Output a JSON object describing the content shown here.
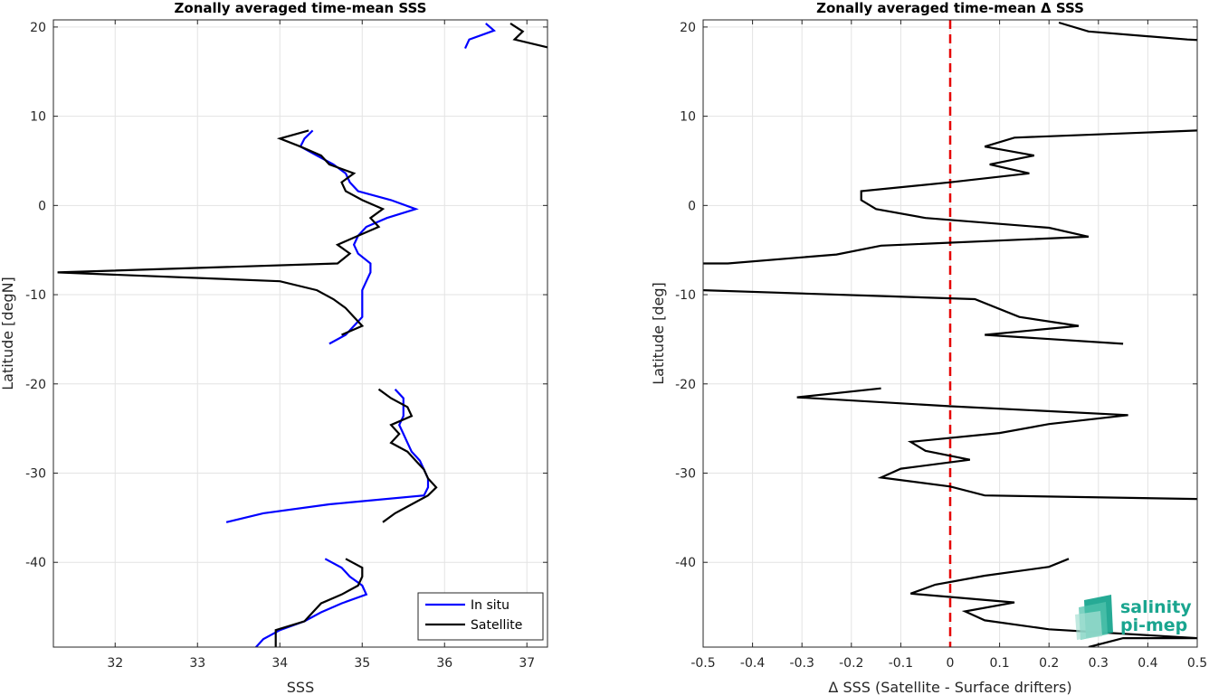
{
  "colors": {
    "in_situ": "#0000ff",
    "satellite": "#000000",
    "zero_line": "#e60000",
    "grid": "#e3e3e3",
    "axes": "#262626",
    "logo": "#1aa58f"
  },
  "logo": {
    "line1": "salinity",
    "line2": "pi-mep",
    "icon": "wave-logo-icon"
  },
  "chart_data": [
    {
      "type": "line",
      "title": "Zonally averaged time-mean SSS",
      "xlabel": "SSS",
      "ylabel": "Latitude [degN]",
      "xlim": [
        31.25,
        37.25
      ],
      "ylim": [
        -49.5,
        20.8
      ],
      "xticks": [
        32,
        33,
        34,
        35,
        36,
        37
      ],
      "yticks": [
        -40,
        -30,
        -20,
        -10,
        0,
        10,
        20
      ],
      "xtick_labels": [
        "32",
        "33",
        "34",
        "35",
        "36",
        "37"
      ],
      "ytick_labels": [
        "-40",
        "-30",
        "-20",
        "-10",
        "0",
        "10",
        "20"
      ],
      "grid": true,
      "legend": {
        "position": "bottom-right",
        "entries": [
          "In situ",
          "Satellite"
        ]
      },
      "series": [
        {
          "name": "In situ",
          "color": "#0000ff",
          "segments": [
            [
              [
                36.25,
                17.6
              ],
              [
                36.3,
                18.6
              ],
              [
                36.6,
                19.6
              ],
              [
                36.5,
                20.4
              ]
            ],
            [
              [
                34.4,
                8.4
              ],
              [
                34.3,
                7.5
              ],
              [
                34.25,
                6.6
              ],
              [
                34.45,
                5.6
              ],
              [
                34.65,
                4.6
              ],
              [
                34.8,
                3.6
              ],
              [
                34.85,
                2.6
              ],
              [
                34.95,
                1.6
              ],
              [
                35.35,
                0.6
              ],
              [
                35.65,
                -0.4
              ],
              [
                35.3,
                -1.4
              ],
              [
                35.05,
                -2.4
              ],
              [
                34.95,
                -3.4
              ],
              [
                34.9,
                -4.4
              ],
              [
                34.95,
                -5.4
              ],
              [
                35.1,
                -6.5
              ],
              [
                35.1,
                -7.5
              ],
              [
                35.05,
                -8.5
              ],
              [
                35.0,
                -9.5
              ],
              [
                35.0,
                -10.5
              ],
              [
                35.0,
                -11.5
              ],
              [
                35.0,
                -12.5
              ],
              [
                34.9,
                -13.5
              ],
              [
                34.8,
                -14.5
              ],
              [
                34.6,
                -15.5
              ]
            ],
            [
              [
                35.4,
                -20.6
              ],
              [
                35.5,
                -21.6
              ],
              [
                35.5,
                -22.6
              ],
              [
                35.5,
                -23.6
              ],
              [
                35.45,
                -24.6
              ],
              [
                35.5,
                -25.6
              ],
              [
                35.55,
                -26.6
              ],
              [
                35.6,
                -27.6
              ],
              [
                35.7,
                -28.6
              ],
              [
                35.75,
                -29.6
              ],
              [
                35.8,
                -30.6
              ],
              [
                35.8,
                -31.6
              ],
              [
                35.75,
                -32.5
              ],
              [
                34.6,
                -33.5
              ],
              [
                33.8,
                -34.5
              ],
              [
                33.35,
                -35.5
              ]
            ],
            [
              [
                34.55,
                -39.6
              ],
              [
                34.75,
                -40.6
              ],
              [
                34.85,
                -41.6
              ],
              [
                35.0,
                -42.6
              ],
              [
                35.05,
                -43.6
              ],
              [
                34.75,
                -44.6
              ],
              [
                34.5,
                -45.6
              ],
              [
                34.3,
                -46.6
              ],
              [
                34.0,
                -47.6
              ],
              [
                33.8,
                -48.6
              ],
              [
                33.7,
                -49.6
              ]
            ]
          ]
        },
        {
          "name": "Satellite",
          "color": "#000000",
          "segments": [
            [
              [
                36.8,
                20.4
              ],
              [
                36.95,
                19.5
              ],
              [
                36.85,
                18.6
              ],
              [
                37.35,
                17.5
              ]
            ],
            [
              [
                34.35,
                8.4
              ],
              [
                34.0,
                7.5
              ],
              [
                34.25,
                6.6
              ],
              [
                34.5,
                5.6
              ],
              [
                34.6,
                4.6
              ],
              [
                34.9,
                3.6
              ],
              [
                34.75,
                2.6
              ],
              [
                34.8,
                1.6
              ],
              [
                35.0,
                0.6
              ],
              [
                35.25,
                -0.4
              ],
              [
                35.1,
                -1.4
              ],
              [
                35.2,
                -2.4
              ],
              [
                34.95,
                -3.4
              ],
              [
                34.7,
                -4.4
              ],
              [
                34.85,
                -5.4
              ],
              [
                34.7,
                -6.5
              ],
              [
                31.3,
                -7.5
              ],
              [
                34.0,
                -8.5
              ],
              [
                34.45,
                -9.5
              ],
              [
                34.65,
                -10.5
              ],
              [
                34.8,
                -11.5
              ],
              [
                34.9,
                -12.5
              ],
              [
                35.0,
                -13.5
              ],
              [
                34.75,
                -14.5
              ]
            ],
            [
              [
                35.2,
                -20.6
              ],
              [
                35.35,
                -21.6
              ],
              [
                35.55,
                -22.6
              ],
              [
                35.6,
                -23.6
              ],
              [
                35.35,
                -24.6
              ],
              [
                35.45,
                -25.6
              ],
              [
                35.35,
                -26.6
              ],
              [
                35.55,
                -27.6
              ],
              [
                35.65,
                -28.6
              ],
              [
                35.75,
                -29.6
              ],
              [
                35.8,
                -30.6
              ],
              [
                35.9,
                -31.6
              ],
              [
                35.8,
                -32.5
              ],
              [
                35.6,
                -33.5
              ],
              [
                35.4,
                -34.5
              ],
              [
                35.25,
                -35.5
              ]
            ],
            [
              [
                34.8,
                -39.6
              ],
              [
                35.0,
                -40.6
              ],
              [
                35.0,
                -41.6
              ],
              [
                34.95,
                -42.6
              ],
              [
                34.75,
                -43.6
              ],
              [
                34.5,
                -44.6
              ],
              [
                34.4,
                -45.6
              ],
              [
                34.3,
                -46.6
              ],
              [
                33.95,
                -47.6
              ],
              [
                33.95,
                -48.6
              ],
              [
                33.95,
                -49.6
              ]
            ]
          ]
        }
      ]
    },
    {
      "type": "line",
      "title": "Zonally averaged time-mean Δ SSS",
      "xlabel": "Δ SSS (Satellite - Surface drifters)",
      "ylabel": "Latitude [deg]",
      "xlim": [
        -0.5,
        0.5
      ],
      "ylim": [
        -49.5,
        20.8
      ],
      "xticks": [
        -0.5,
        -0.4,
        -0.3,
        -0.2,
        -0.1,
        0,
        0.1,
        0.2,
        0.3,
        0.4,
        0.5
      ],
      "yticks": [
        -40,
        -30,
        -20,
        -10,
        0,
        10,
        20
      ],
      "xtick_labels": [
        "-0.5",
        "-0.4",
        "-0.3",
        "-0.2",
        "-0.1",
        "0",
        "0.1",
        "0.2",
        "0.3",
        "0.4",
        "0.5"
      ],
      "ytick_labels": [
        "-40",
        "-30",
        "-20",
        "-10",
        "0",
        "10",
        "20"
      ],
      "grid": true,
      "reference_line": {
        "x": 0,
        "color": "#e60000",
        "style": "dashed"
      },
      "series": [
        {
          "color": "#000000",
          "segments": [
            [
              [
                0.22,
                20.5
              ],
              [
                0.28,
                19.5
              ],
              [
                0.48,
                18.6
              ],
              [
                0.55,
                18.4
              ]
            ],
            [
              [
                0.5,
                8.4
              ],
              [
                0.13,
                7.6
              ],
              [
                0.07,
                6.6
              ],
              [
                0.17,
                5.6
              ],
              [
                0.08,
                4.6
              ],
              [
                0.16,
                3.6
              ],
              [
                0.0,
                2.6
              ],
              [
                -0.18,
                1.6
              ],
              [
                -0.18,
                0.6
              ],
              [
                -0.15,
                -0.4
              ],
              [
                -0.05,
                -1.4
              ],
              [
                0.2,
                -2.5
              ],
              [
                0.28,
                -3.5
              ],
              [
                -0.14,
                -4.5
              ],
              [
                -0.23,
                -5.5
              ],
              [
                -0.45,
                -6.5
              ],
              [
                -0.5,
                -6.5
              ]
            ],
            [
              [
                -0.5,
                -9.5
              ],
              [
                0.05,
                -10.5
              ],
              [
                0.14,
                -12.5
              ],
              [
                0.26,
                -13.5
              ],
              [
                0.07,
                -14.5
              ],
              [
                0.35,
                -15.5
              ]
            ],
            [
              [
                -0.14,
                -20.5
              ],
              [
                -0.31,
                -21.5
              ],
              [
                0.0,
                -22.5
              ],
              [
                0.36,
                -23.5
              ],
              [
                0.2,
                -24.5
              ],
              [
                0.1,
                -25.5
              ],
              [
                -0.08,
                -26.5
              ],
              [
                -0.05,
                -27.5
              ],
              [
                0.04,
                -28.5
              ],
              [
                -0.1,
                -29.5
              ],
              [
                -0.14,
                -30.5
              ],
              [
                0.0,
                -31.5
              ],
              [
                0.07,
                -32.5
              ],
              [
                0.5,
                -32.9
              ]
            ],
            [
              [
                0.24,
                -39.6
              ],
              [
                0.2,
                -40.5
              ],
              [
                0.07,
                -41.5
              ],
              [
                -0.03,
                -42.5
              ],
              [
                -0.08,
                -43.5
              ],
              [
                0.13,
                -44.5
              ],
              [
                0.03,
                -45.5
              ],
              [
                0.07,
                -46.5
              ],
              [
                0.2,
                -47.5
              ],
              [
                0.5,
                -48.5
              ],
              [
                0.35,
                -48.5
              ],
              [
                0.28,
                -49.5
              ]
            ]
          ]
        }
      ]
    }
  ]
}
